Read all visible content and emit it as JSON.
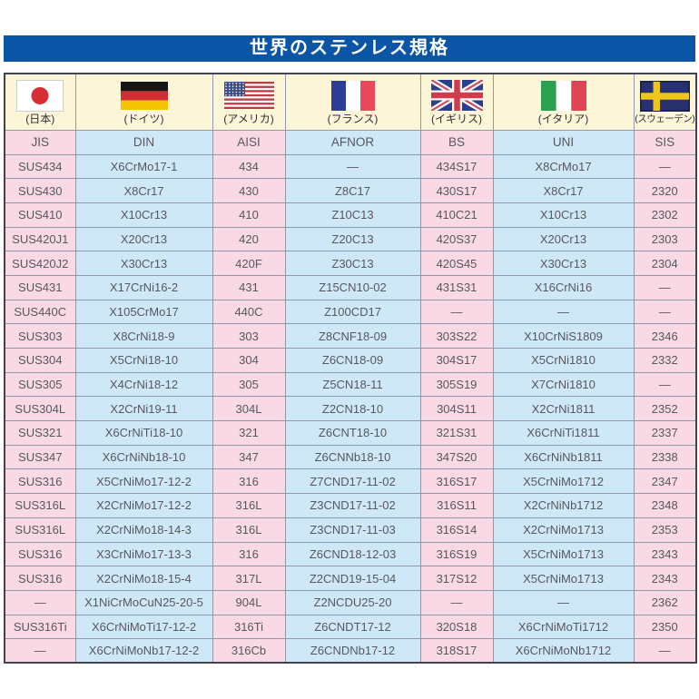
{
  "page": {
    "title": "世界のステンレス規格"
  },
  "colors": {
    "title_bar_blue": "#0b55a6",
    "column_pink": "#f9d9e3",
    "column_blue": "#cfe8f8",
    "flag_row_cream": "#fcf5d8",
    "grid_border": "#8f99a7",
    "outer_border": "#43434f",
    "cell_text": "#57575f"
  },
  "table": {
    "empty_value": "—",
    "columns": [
      {
        "standard": "JIS",
        "country_label": "(日本)",
        "flag_icon": "japan-flag",
        "tint": "pink"
      },
      {
        "standard": "DIN",
        "country_label": "(ドイツ)",
        "flag_icon": "germany-flag",
        "tint": "blue"
      },
      {
        "standard": "AISI",
        "country_label": "(アメリカ)",
        "flag_icon": "usa-flag",
        "tint": "pink"
      },
      {
        "standard": "AFNOR",
        "country_label": "(フランス)",
        "flag_icon": "france-flag",
        "tint": "blue"
      },
      {
        "standard": "BS",
        "country_label": "(イギリス)",
        "flag_icon": "uk-flag",
        "tint": "pink"
      },
      {
        "standard": "UNI",
        "country_label": "(イタリア)",
        "flag_icon": "italy-flag",
        "tint": "blue"
      },
      {
        "standard": "SIS",
        "country_label": "(スウェーデン)",
        "flag_icon": "sweden-flag",
        "tint": "pink"
      }
    ],
    "rows": [
      [
        "SUS434",
        "X6CrMo17-1",
        "434",
        "—",
        "434S17",
        "X8CrMo17",
        "—"
      ],
      [
        "SUS430",
        "X8Cr17",
        "430",
        "Z8C17",
        "430S17",
        "X8Cr17",
        "2320"
      ],
      [
        "SUS410",
        "X10Cr13",
        "410",
        "Z10C13",
        "410C21",
        "X10Cr13",
        "2302"
      ],
      [
        "SUS420J1",
        "X20Cr13",
        "420",
        "Z20C13",
        "420S37",
        "X20Cr13",
        "2303"
      ],
      [
        "SUS420J2",
        "X30Cr13",
        "420F",
        "Z30C13",
        "420S45",
        "X30Cr13",
        "2304"
      ],
      [
        "SUS431",
        "X17CrNi16-2",
        "431",
        "Z15CN10-02",
        "431S31",
        "X16CrNi16",
        "—"
      ],
      [
        "SUS440C",
        "X105CrMo17",
        "440C",
        "Z100CD17",
        "—",
        "—",
        "—"
      ],
      [
        "SUS303",
        "X8CrNi18-9",
        "303",
        "Z8CNF18-09",
        "303S22",
        "X10CrNiS1809",
        "2346"
      ],
      [
        "SUS304",
        "X5CrNi18-10",
        "304",
        "Z6CN18-09",
        "304S17",
        "X5CrNi1810",
        "2332"
      ],
      [
        "SUS305",
        "X4CrNi18-12",
        "305",
        "Z5CN18-11",
        "305S19",
        "X7CrNi1810",
        "—"
      ],
      [
        "SUS304L",
        "X2CrNi19-11",
        "304L",
        "Z2CN18-10",
        "304S11",
        "X2CrNi1811",
        "2352"
      ],
      [
        "SUS321",
        "X6CrNiTi18-10",
        "321",
        "Z6CNT18-10",
        "321S31",
        "X6CrNiTi1811",
        "2337"
      ],
      [
        "SUS347",
        "X6CrNiNb18-10",
        "347",
        "Z6CNNb18-10",
        "347S20",
        "X6CrNiNb1811",
        "2338"
      ],
      [
        "SUS316",
        "X5CrNiMo17-12-2",
        "316",
        "Z7CND17-11-02",
        "316S17",
        "X5CrNiMo1712",
        "2347"
      ],
      [
        "SUS316L",
        "X2CrNiMo17-12-2",
        "316L",
        "Z3CND17-11-02",
        "316S11",
        "X2CrNiNb1712",
        "2348"
      ],
      [
        "SUS316L",
        "X2CrNiMo18-14-3",
        "316L",
        "Z3CND17-11-03",
        "316S14",
        "X2CrNiMo1713",
        "2353"
      ],
      [
        "SUS316",
        "X3CrNiMo17-13-3",
        "316",
        "Z6CND18-12-03",
        "316S19",
        "X5CrNiMo1713",
        "2343"
      ],
      [
        "SUS316",
        "X2CrNiMo18-15-4",
        "317L",
        "Z2CND19-15-04",
        "317S12",
        "X5CrNiMo1713",
        "2343"
      ],
      [
        "—",
        "X1NiCrMoCuN25-20-5",
        "904L",
        "Z2NCDU25-20",
        "—",
        "—",
        "2362"
      ],
      [
        "SUS316Ti",
        "X6CrNiMoTi17-12-2",
        "316Ti",
        "Z6CNDT17-12",
        "320S18",
        "X6CrNiMoTi1712",
        "2350"
      ],
      [
        "—",
        "X6CrNiMoNb17-12-2",
        "316Cb",
        "Z6CNDNb17-12",
        "318S17",
        "X6CrNiMoNb1712",
        "—"
      ]
    ]
  }
}
